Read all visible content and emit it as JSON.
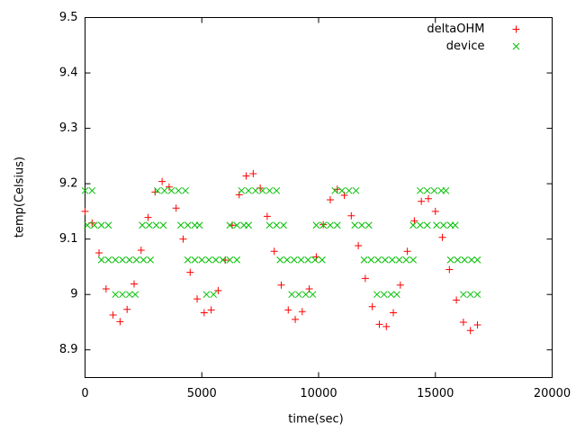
{
  "chart_data": {
    "type": "scatter",
    "x_label": "time(sec)",
    "y_label": "temp(Celsius)",
    "xlim": [
      0,
      20000
    ],
    "xticks": [
      0,
      5000,
      10000,
      15000,
      20000
    ],
    "ylim": [
      8.85,
      9.5
    ],
    "yticks": [
      8.9,
      9,
      9.1,
      9.2,
      9.3,
      9.4,
      9.5
    ],
    "legend": "top-right",
    "grid": false,
    "series": [
      {
        "name": "deltaOHM",
        "color": "#ff0000",
        "marker": "plus",
        "x": [
          0,
          300,
          600,
          900,
          1200,
          1500,
          1800,
          2100,
          2400,
          2700,
          3000,
          3300,
          3600,
          3900,
          4200,
          4500,
          4800,
          5100,
          5400,
          5700,
          6000,
          6300,
          6600,
          6900,
          7200,
          7500,
          7800,
          8100,
          8400,
          8700,
          9000,
          9300,
          9600,
          9900,
          10200,
          10500,
          10800,
          11100,
          11400,
          11700,
          12000,
          12300,
          12600,
          12900,
          13200,
          13500,
          13800,
          14100,
          14400,
          14700,
          15000,
          15300,
          15600,
          15900,
          16200,
          16500,
          16800
        ],
        "values": [
          9.15,
          9.129,
          9.075,
          9.01,
          8.963,
          8.951,
          8.973,
          9.019,
          9.08,
          9.139,
          9.185,
          9.204,
          9.194,
          9.156,
          9.1,
          9.04,
          8.992,
          8.967,
          8.972,
          9.007,
          9.062,
          9.125,
          9.18,
          9.214,
          9.218,
          9.192,
          9.141,
          9.078,
          9.017,
          8.972,
          8.955,
          8.969,
          9.01,
          9.068,
          9.126,
          9.171,
          9.19,
          9.179,
          9.142,
          9.088,
          9.029,
          8.978,
          8.946,
          8.942,
          8.967,
          9.017,
          9.078,
          9.133,
          9.168,
          9.173,
          9.15,
          9.103,
          9.045,
          8.99,
          8.95,
          8.935,
          8.945
        ]
      },
      {
        "name": "device",
        "color": "#00c000",
        "marker": "cross",
        "x": [
          0,
          300,
          100,
          400,
          700,
          1000,
          700,
          1000,
          1300,
          1600,
          1900,
          2200,
          2500,
          2800,
          1300,
          1600,
          1900,
          2150,
          2450,
          2750,
          3050,
          3350,
          3100,
          3400,
          3700,
          4000,
          4300,
          4100,
          4400,
          4700,
          4900,
          4400,
          4700,
          5000,
          5300,
          5600,
          5900,
          6200,
          6500,
          5200,
          5500,
          6200,
          6500,
          6800,
          7000,
          6700,
          7000,
          7300,
          7600,
          7900,
          8200,
          7900,
          8200,
          8500,
          8350,
          8650,
          8950,
          9250,
          9550,
          9850,
          10150,
          8850,
          9150,
          9450,
          9750,
          9900,
          10200,
          10500,
          10800,
          10700,
          11000,
          11300,
          11600,
          11550,
          11850,
          12150,
          11950,
          12250,
          12550,
          12850,
          13150,
          13450,
          13750,
          14050,
          12500,
          12800,
          13100,
          13350,
          14050,
          14350,
          14650,
          14350,
          14650,
          14950,
          15250,
          15450,
          15050,
          15350,
          15650,
          15850,
          15650,
          15950,
          16250,
          16550,
          16800,
          16200,
          16500,
          16800
        ],
        "values": [
          9.1875,
          9.1875,
          9.125,
          9.125,
          9.125,
          9.125,
          9.0625,
          9.0625,
          9.0625,
          9.0625,
          9.0625,
          9.0625,
          9.0625,
          9.0625,
          9,
          9,
          9,
          9,
          9.125,
          9.125,
          9.125,
          9.125,
          9.1875,
          9.1875,
          9.1875,
          9.1875,
          9.1875,
          9.125,
          9.125,
          9.125,
          9.125,
          9.0625,
          9.0625,
          9.0625,
          9.0625,
          9.0625,
          9.0625,
          9.0625,
          9.0625,
          9,
          9,
          9.125,
          9.125,
          9.125,
          9.125,
          9.1875,
          9.1875,
          9.1875,
          9.1875,
          9.1875,
          9.1875,
          9.125,
          9.125,
          9.125,
          9.0625,
          9.0625,
          9.0625,
          9.0625,
          9.0625,
          9.0625,
          9.0625,
          9,
          9,
          9,
          9,
          9.125,
          9.125,
          9.125,
          9.125,
          9.1875,
          9.1875,
          9.1875,
          9.1875,
          9.125,
          9.125,
          9.125,
          9.0625,
          9.0625,
          9.0625,
          9.0625,
          9.0625,
          9.0625,
          9.0625,
          9.0625,
          9,
          9,
          9,
          9,
          9.125,
          9.125,
          9.125,
          9.1875,
          9.1875,
          9.1875,
          9.1875,
          9.1875,
          9.125,
          9.125,
          9.125,
          9.125,
          9.0625,
          9.0625,
          9.0625,
          9.0625,
          9.0625,
          9,
          9,
          9
        ]
      }
    ]
  }
}
